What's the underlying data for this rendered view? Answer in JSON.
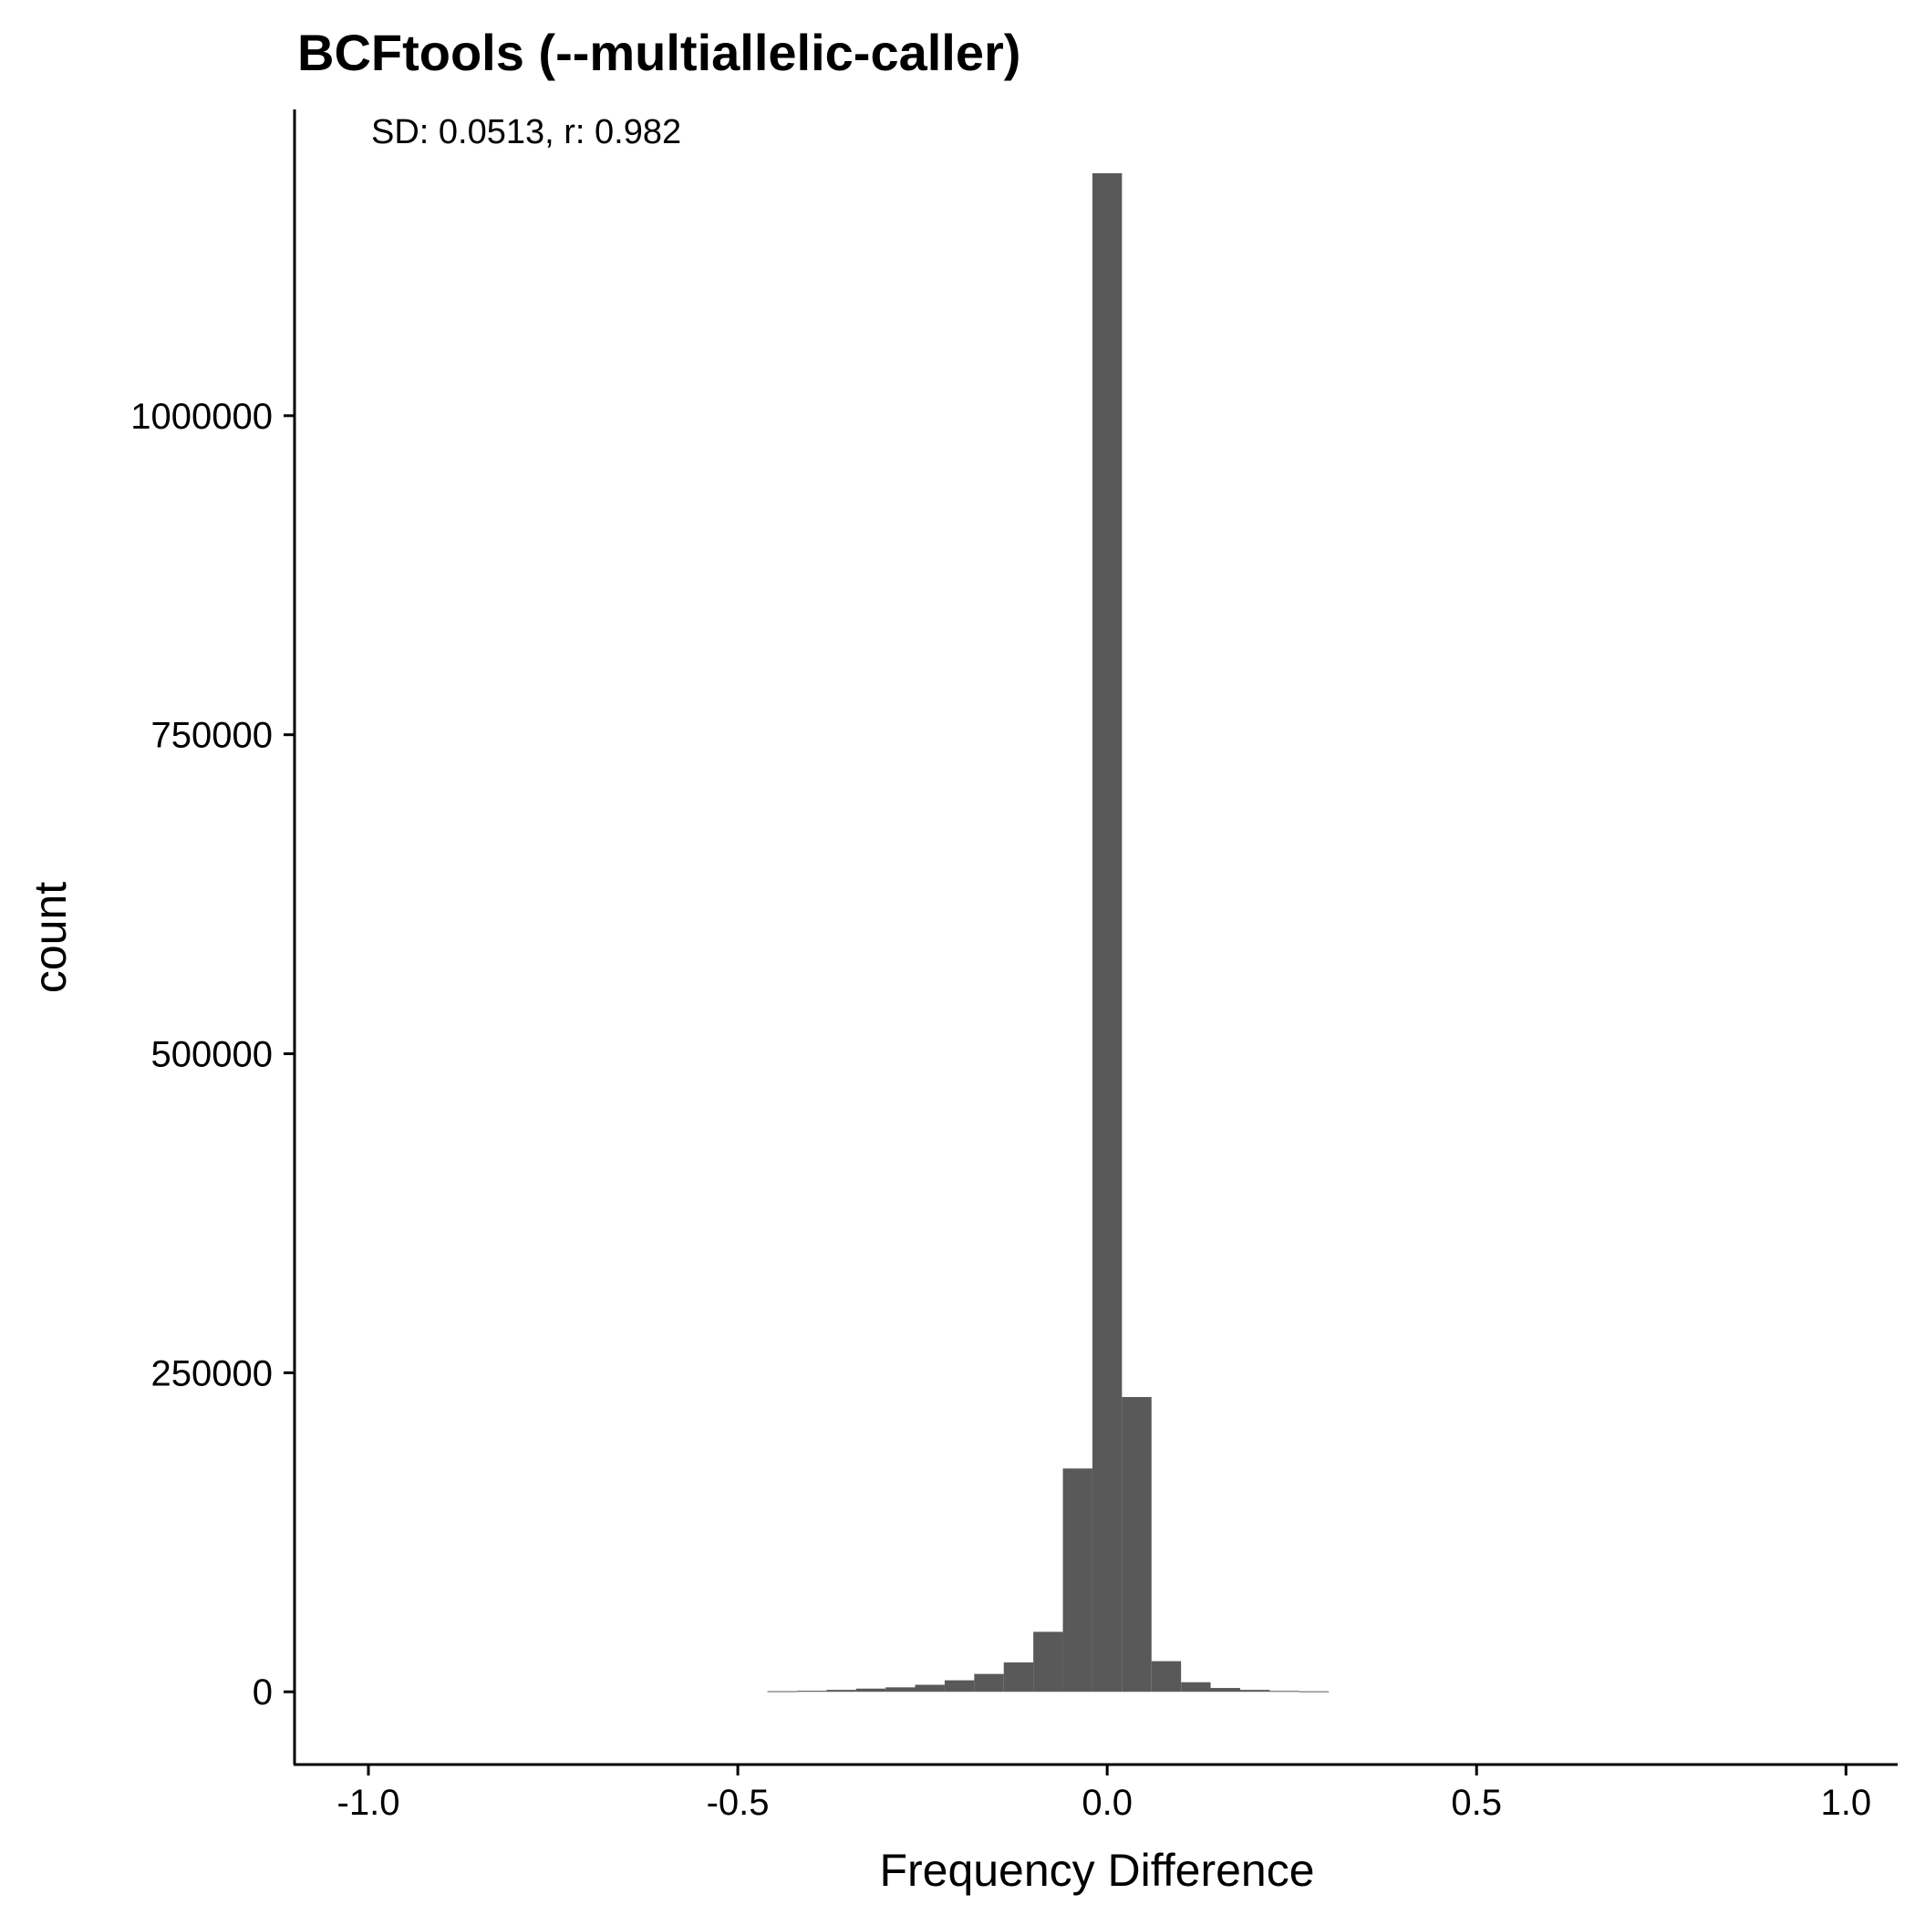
{
  "chart_data": {
    "type": "bar",
    "title": "BCFtools (--multiallelic-caller)",
    "annotation": "SD: 0.0513, r: 0.982",
    "xlabel": "Frequency Difference",
    "ylabel": "count",
    "xlim": [
      -1.1,
      1.07
    ],
    "ylim": [
      -57000,
      1240000
    ],
    "x_ticks": [
      -1.0,
      -0.5,
      0.0,
      0.5,
      1.0
    ],
    "x_tick_labels": [
      "-1.0",
      "-0.5",
      "0.0",
      "0.5",
      "1.0"
    ],
    "y_ticks": [
      0,
      250000,
      500000,
      750000,
      1000000
    ],
    "y_tick_labels": [
      "0",
      "250000",
      "500000",
      "750000",
      "1000000"
    ],
    "bin_width": 0.04,
    "bins": [
      {
        "x0": -0.46,
        "x1": -0.42,
        "count": 500
      },
      {
        "x0": -0.42,
        "x1": -0.38,
        "count": 800
      },
      {
        "x0": -0.38,
        "x1": -0.34,
        "count": 1500
      },
      {
        "x0": -0.34,
        "x1": -0.3,
        "count": 2500
      },
      {
        "x0": -0.3,
        "x1": -0.26,
        "count": 3500
      },
      {
        "x0": -0.26,
        "x1": -0.22,
        "count": 5500
      },
      {
        "x0": -0.22,
        "x1": -0.18,
        "count": 9000
      },
      {
        "x0": -0.18,
        "x1": -0.14,
        "count": 14000
      },
      {
        "x0": -0.14,
        "x1": -0.1,
        "count": 23000
      },
      {
        "x0": -0.1,
        "x1": -0.06,
        "count": 47000
      },
      {
        "x0": -0.06,
        "x1": -0.02,
        "count": 175000
      },
      {
        "x0": -0.02,
        "x1": 0.02,
        "count": 1190000
      },
      {
        "x0": 0.02,
        "x1": 0.06,
        "count": 231000
      },
      {
        "x0": 0.06,
        "x1": 0.1,
        "count": 24000
      },
      {
        "x0": 0.1,
        "x1": 0.14,
        "count": 7500
      },
      {
        "x0": 0.14,
        "x1": 0.18,
        "count": 3000
      },
      {
        "x0": 0.18,
        "x1": 0.22,
        "count": 1500
      },
      {
        "x0": 0.22,
        "x1": 0.26,
        "count": 700
      },
      {
        "x0": 0.26,
        "x1": 0.3,
        "count": 400
      }
    ],
    "bar_color": "#595959",
    "grid": false,
    "legend": "none"
  }
}
